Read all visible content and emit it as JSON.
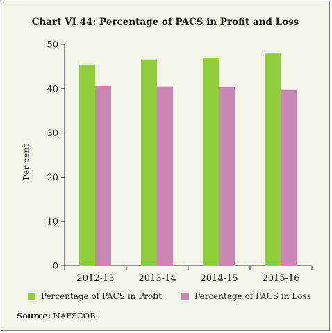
{
  "chart_data": {
    "type": "bar",
    "title": "Chart VI.44: Percentage of PACS in Profit and Loss",
    "ylabel": "Per cent",
    "xlabel": "",
    "ylim": [
      0,
      50
    ],
    "yticks": [
      0,
      10,
      20,
      30,
      40,
      50
    ],
    "categories": [
      "2012-13",
      "2013-14",
      "2014-15",
      "2015-16"
    ],
    "series": [
      {
        "name": "Percentage of PACS in Profit",
        "color": "#8fcd3a",
        "values": [
          45.5,
          46.6,
          47.0,
          48.1
        ]
      },
      {
        "name": "Percentage of PACS in Loss",
        "color": "#c986b2",
        "values": [
          40.6,
          40.5,
          40.3,
          39.7
        ]
      }
    ],
    "grid": false,
    "legend_position": "bottom"
  },
  "source": {
    "label": "Source:",
    "text": "NAFSCOB."
  },
  "colors": {
    "background": "#f2f5e8",
    "axis": "#333333"
  }
}
